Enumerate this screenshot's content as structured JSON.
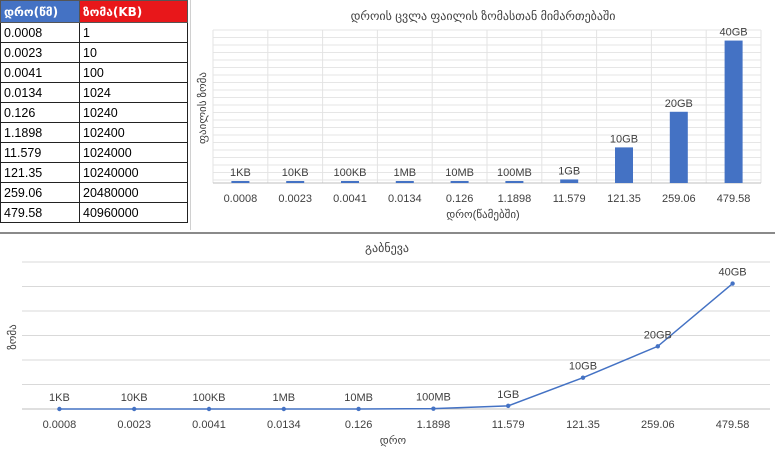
{
  "table": {
    "headers": [
      "დრო(წმ)",
      "ზომა(KB)"
    ],
    "rows": [
      [
        "0.0008",
        "1"
      ],
      [
        "0.0023",
        "10"
      ],
      [
        "0.0041",
        "100"
      ],
      [
        "0.0134",
        "1024"
      ],
      [
        "0.126",
        "10240"
      ],
      [
        "1.1898",
        "102400"
      ],
      [
        "11.579",
        "1024000"
      ],
      [
        "121.35",
        "10240000"
      ],
      [
        "259.06",
        "20480000"
      ],
      [
        "479.58",
        "40960000"
      ]
    ],
    "colors": {
      "time_header": "#4472c4",
      "size_header": "#e8171a"
    }
  },
  "chart_data": [
    {
      "type": "bar",
      "title": "დროის ცვლა ფაილის ზომასთან მიმართებაში",
      "xlabel": "დრო(წამებში)",
      "ylabel": "ფაილის ზომა",
      "categories": [
        "0.0008",
        "0.0023",
        "0.0041",
        "0.0134",
        "0.126",
        "1.1898",
        "11.579",
        "121.35",
        "259.06",
        "479.58"
      ],
      "values": [
        1,
        10,
        100,
        1024,
        10240,
        102400,
        1024000,
        10240000,
        20480000,
        40960000
      ],
      "data_labels": [
        "1KB",
        "10KB",
        "100KB",
        "1MB",
        "10MB",
        "100MB",
        "1GB",
        "10GB",
        "20GB",
        "40GB"
      ],
      "ylim": [
        0,
        44000000
      ],
      "color": "#4472c4",
      "grid": true,
      "legend": "none"
    },
    {
      "type": "line",
      "title": "გაბნევა",
      "xlabel": "დრო",
      "ylabel": "ზომა",
      "categories": [
        "0.0008",
        "0.0023",
        "0.0041",
        "0.0134",
        "0.126",
        "1.1898",
        "11.579",
        "121.35",
        "259.06",
        "479.58"
      ],
      "values": [
        1,
        10,
        100,
        1024,
        10240,
        102400,
        1024000,
        10240000,
        20480000,
        40960000
      ],
      "data_labels": [
        "1KB",
        "10KB",
        "100KB",
        "1MB",
        "10MB",
        "100MB",
        "1GB",
        "10GB",
        "20GB",
        "40GB"
      ],
      "ylim": [
        0,
        48000000
      ],
      "color": "#4472c4",
      "grid": true,
      "legend": "none"
    }
  ]
}
